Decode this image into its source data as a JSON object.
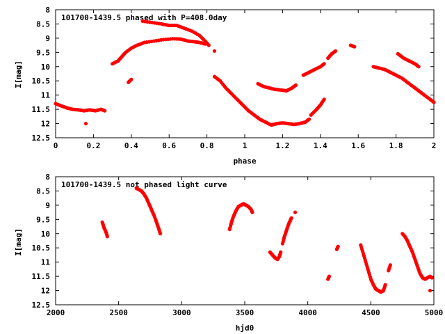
{
  "chart_data": [
    {
      "type": "scatter",
      "title": "101700-1439.5 phased with P=408.0day",
      "xlabel": "phase",
      "ylabel": "I[mag]",
      "xlim": [
        0,
        2
      ],
      "ylim": [
        12.5,
        8
      ],
      "y_inverted": true,
      "xticks": [
        "0",
        "0.2",
        "0.4",
        "0.6",
        "0.8",
        "1",
        "1.2",
        "1.4",
        "1.6",
        "1.8",
        "2"
      ],
      "yticks": [
        "8",
        "8.5",
        "9",
        "9.5",
        "10",
        "10.5",
        "11",
        "11.5",
        "12",
        "12.5"
      ],
      "grid": false,
      "legend": "none",
      "marker_color": "#ff0000",
      "series": [
        {
          "segments": [
            [
              [
                0.0,
                11.3
              ],
              [
                0.03,
                11.38
              ],
              [
                0.06,
                11.45
              ],
              [
                0.09,
                11.5
              ],
              [
                0.12,
                11.52
              ],
              [
                0.15,
                11.55
              ],
              [
                0.18,
                11.52
              ],
              [
                0.21,
                11.55
              ],
              [
                0.24,
                11.5
              ],
              [
                0.26,
                11.55
              ]
            ],
            [
              [
                0.16,
                12.0
              ]
            ],
            [
              [
                0.3,
                9.9
              ],
              [
                0.33,
                9.8
              ],
              [
                0.35,
                9.65
              ],
              [
                0.37,
                9.5
              ],
              [
                0.4,
                9.35
              ],
              [
                0.43,
                9.25
              ],
              [
                0.47,
                9.15
              ],
              [
                0.52,
                9.1
              ],
              [
                0.57,
                9.05
              ],
              [
                0.62,
                9.02
              ],
              [
                0.66,
                9.03
              ],
              [
                0.7,
                9.1
              ],
              [
                0.73,
                9.12
              ],
              [
                0.76,
                9.15
              ],
              [
                0.79,
                9.2
              ]
            ],
            [
              [
                0.385,
                10.55
              ],
              [
                0.4,
                10.45
              ]
            ],
            [
              [
                0.46,
                8.4
              ],
              [
                0.51,
                8.45
              ],
              [
                0.56,
                8.5
              ],
              [
                0.6,
                8.55
              ],
              [
                0.64,
                8.55
              ],
              [
                0.68,
                8.65
              ],
              [
                0.72,
                8.75
              ],
              [
                0.76,
                8.9
              ],
              [
                0.79,
                9.1
              ],
              [
                0.81,
                9.25
              ]
            ],
            [
              [
                0.84,
                9.45
              ]
            ],
            [
              [
                0.84,
                10.35
              ],
              [
                0.87,
                10.5
              ],
              [
                0.9,
                10.75
              ],
              [
                0.93,
                10.95
              ],
              [
                0.96,
                11.15
              ],
              [
                0.99,
                11.35
              ],
              [
                1.02,
                11.55
              ],
              [
                1.05,
                11.7
              ],
              [
                1.08,
                11.85
              ],
              [
                1.11,
                11.95
              ],
              [
                1.14,
                12.05
              ],
              [
                1.17,
                12.0
              ],
              [
                1.2,
                11.98
              ],
              [
                1.23,
                12.0
              ],
              [
                1.26,
                12.03
              ],
              [
                1.29,
                12.0
              ],
              [
                1.32,
                11.95
              ],
              [
                1.34,
                11.85
              ]
            ],
            [
              [
                1.07,
                10.6
              ],
              [
                1.1,
                10.7
              ],
              [
                1.13,
                10.75
              ],
              [
                1.16,
                10.8
              ],
              [
                1.19,
                10.82
              ],
              [
                1.22,
                10.85
              ],
              [
                1.25,
                10.75
              ],
              [
                1.27,
                10.65
              ]
            ],
            [
              [
                1.35,
                11.7
              ],
              [
                1.38,
                11.5
              ],
              [
                1.4,
                11.35
              ],
              [
                1.42,
                11.15
              ]
            ],
            [
              [
                1.31,
                10.3
              ],
              [
                1.34,
                10.2
              ],
              [
                1.37,
                10.1
              ],
              [
                1.4,
                10.0
              ],
              [
                1.42,
                9.9
              ]
            ],
            [
              [
                1.44,
                9.7
              ],
              [
                1.46,
                9.55
              ],
              [
                1.48,
                9.45
              ]
            ],
            [
              [
                1.56,
                9.25
              ],
              [
                1.58,
                9.3
              ]
            ],
            [
              [
                1.68,
                10.0
              ],
              [
                1.71,
                10.05
              ],
              [
                1.74,
                10.1
              ],
              [
                1.77,
                10.2
              ],
              [
                1.8,
                10.3
              ],
              [
                1.83,
                10.4
              ],
              [
                1.86,
                10.55
              ],
              [
                1.89,
                10.7
              ],
              [
                1.92,
                10.85
              ],
              [
                1.95,
                11.0
              ],
              [
                1.98,
                11.15
              ],
              [
                2.0,
                11.25
              ]
            ],
            [
              [
                1.81,
                9.55
              ],
              [
                1.84,
                9.7
              ],
              [
                1.87,
                9.8
              ],
              [
                1.9,
                9.9
              ],
              [
                1.92,
                10.0
              ]
            ]
          ]
        }
      ]
    },
    {
      "type": "scatter",
      "title": "101700-1439.5 not phased light curve",
      "xlabel": "hjd0",
      "ylabel": "I[mag]",
      "xlim": [
        2000,
        5000
      ],
      "ylim": [
        12.5,
        8
      ],
      "y_inverted": true,
      "xticks": [
        "2000",
        "2500",
        "3000",
        "3500",
        "4000",
        "4500",
        "5000"
      ],
      "yticks": [
        "8",
        "8.5",
        "9",
        "9.5",
        "10",
        "10.5",
        "11",
        "11.5",
        "12",
        "12.5"
      ],
      "grid": false,
      "legend": "none",
      "marker_color": "#ff0000",
      "series": [
        {
          "segments": [
            [
              [
                2370,
                9.6
              ],
              [
                2385,
                9.8
              ],
              [
                2400,
                9.95
              ],
              [
                2410,
                10.1
              ]
            ],
            [
              [
                2640,
                8.4
              ],
              [
                2660,
                8.45
              ],
              [
                2680,
                8.5
              ],
              [
                2700,
                8.6
              ],
              [
                2720,
                8.75
              ],
              [
                2740,
                8.95
              ],
              [
                2760,
                9.15
              ],
              [
                2780,
                9.35
              ],
              [
                2800,
                9.6
              ],
              [
                2820,
                9.85
              ],
              [
                2830,
                10.0
              ]
            ],
            [
              [
                3380,
                9.85
              ],
              [
                3395,
                9.6
              ],
              [
                3410,
                9.4
              ],
              [
                3430,
                9.2
              ],
              [
                3450,
                9.05
              ],
              [
                3470,
                9.0
              ],
              [
                3490,
                8.95
              ],
              [
                3510,
                9.0
              ],
              [
                3530,
                9.05
              ],
              [
                3550,
                9.15
              ],
              [
                3560,
                9.25
              ]
            ],
            [
              [
                3700,
                10.65
              ],
              [
                3720,
                10.75
              ],
              [
                3740,
                10.85
              ],
              [
                3760,
                10.9
              ],
              [
                3775,
                10.8
              ],
              [
                3785,
                10.65
              ]
            ],
            [
              [
                3800,
                10.35
              ],
              [
                3815,
                10.1
              ],
              [
                3830,
                9.9
              ],
              [
                3845,
                9.7
              ],
              [
                3860,
                9.55
              ],
              [
                3870,
                9.45
              ]
            ],
            [
              [
                3900,
                9.25
              ]
            ],
            [
              [
                4160,
                11.6
              ],
              [
                4170,
                11.5
              ]
            ],
            [
              [
                4230,
                10.55
              ],
              [
                4240,
                10.45
              ]
            ],
            [
              [
                4420,
                10.4
              ],
              [
                4440,
                10.7
              ],
              [
                4460,
                11.0
              ],
              [
                4480,
                11.3
              ],
              [
                4500,
                11.6
              ],
              [
                4520,
                11.8
              ],
              [
                4540,
                11.95
              ],
              [
                4560,
                12.0
              ],
              [
                4580,
                12.05
              ],
              [
                4600,
                12.0
              ],
              [
                4615,
                11.8
              ]
            ],
            [
              [
                4640,
                11.3
              ],
              [
                4655,
                11.1
              ]
            ],
            [
              [
                4750,
                10.0
              ],
              [
                4770,
                10.1
              ],
              [
                4790,
                10.25
              ],
              [
                4810,
                10.45
              ],
              [
                4830,
                10.65
              ],
              [
                4850,
                10.9
              ],
              [
                4870,
                11.15
              ],
              [
                4890,
                11.4
              ],
              [
                4910,
                11.55
              ],
              [
                4930,
                11.6
              ],
              [
                4950,
                11.55
              ],
              [
                4970,
                11.5
              ],
              [
                4985,
                11.55
              ]
            ],
            [
              [
                4970,
                12.0
              ]
            ]
          ]
        }
      ]
    }
  ]
}
